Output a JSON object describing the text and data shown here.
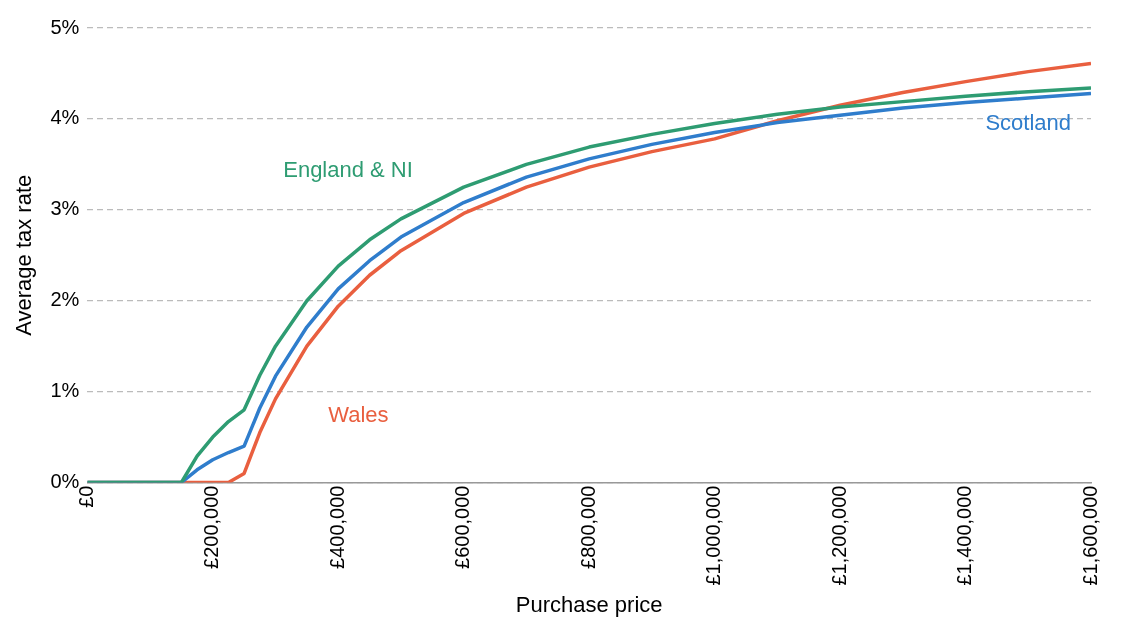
{
  "chart_data": {
    "type": "line",
    "xlabel": "Purchase price",
    "ylabel": "Average tax rate",
    "x": [
      0,
      150000,
      175000,
      200000,
      225000,
      250000,
      275000,
      300000,
      350000,
      400000,
      450000,
      500000,
      600000,
      700000,
      800000,
      900000,
      1000000,
      1100000,
      1200000,
      1300000,
      1400000,
      1500000,
      1600000
    ],
    "xlim": [
      0,
      1600000
    ],
    "xticks": [
      {
        "value": 0,
        "label": "£0"
      },
      {
        "value": 200000,
        "label": "£200,000"
      },
      {
        "value": 400000,
        "label": "£400,000"
      },
      {
        "value": 600000,
        "label": "£600,000"
      },
      {
        "value": 800000,
        "label": "£800,000"
      },
      {
        "value": 1000000,
        "label": "£1,000,000"
      },
      {
        "value": 1200000,
        "label": "£1,200,000"
      },
      {
        "value": 1400000,
        "label": "£1,400,000"
      },
      {
        "value": 1600000,
        "label": "£1,600,000"
      }
    ],
    "ylim": [
      0,
      5
    ],
    "yticks": [
      {
        "value": 0,
        "label": "0%"
      },
      {
        "value": 1,
        "label": "1%"
      },
      {
        "value": 2,
        "label": "2%"
      },
      {
        "value": 3,
        "label": "3%"
      },
      {
        "value": 4,
        "label": "4%"
      },
      {
        "value": 5,
        "label": "5%"
      }
    ],
    "grid": "y",
    "legend": false,
    "marker": "none",
    "line_style": "solid",
    "series": [
      {
        "name": "England & NI",
        "color": "#2e9c72",
        "values": [
          0,
          0,
          0.29,
          0.5,
          0.67,
          0.8,
          1.18,
          1.5,
          2.0,
          2.38,
          2.67,
          2.9,
          3.25,
          3.5,
          3.69,
          3.83,
          3.95,
          4.05,
          4.13,
          4.19,
          4.25,
          4.3,
          4.34
        ]
      },
      {
        "name": "Scotland",
        "color": "#2f7dcc",
        "values": [
          0,
          0,
          0.14,
          0.25,
          0.33,
          0.4,
          0.82,
          1.17,
          1.71,
          2.13,
          2.44,
          2.7,
          3.08,
          3.36,
          3.56,
          3.72,
          3.85,
          3.96,
          4.04,
          4.12,
          4.18,
          4.23,
          4.28
        ]
      },
      {
        "name": "Wales",
        "color": "#e95f3f",
        "values": [
          0,
          0,
          0,
          0,
          0,
          0.1,
          0.55,
          0.92,
          1.5,
          1.94,
          2.28,
          2.55,
          2.96,
          3.25,
          3.47,
          3.64,
          3.78,
          3.98,
          4.15,
          4.29,
          4.41,
          4.52,
          4.61
        ]
      }
    ]
  }
}
